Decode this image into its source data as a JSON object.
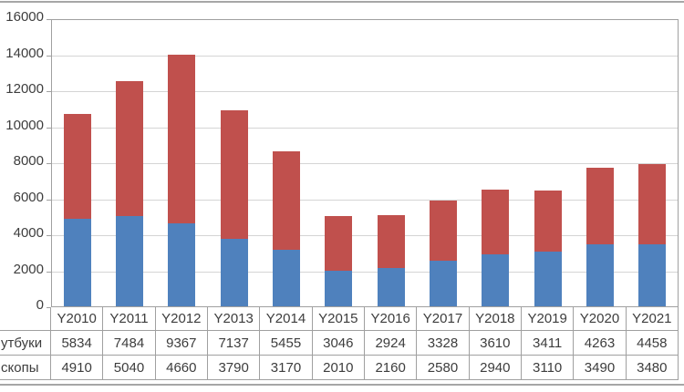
{
  "chart_data": {
    "type": "bar",
    "stacked": true,
    "title": "",
    "xlabel": "",
    "ylabel": "",
    "categories": [
      "Y2010",
      "Y2011",
      "Y2012",
      "Y2013",
      "Y2014",
      "Y2015",
      "Y2016",
      "Y2017",
      "Y2018",
      "Y2019",
      "Y2020",
      "Y2021"
    ],
    "series": [
      {
        "name": "утбуки",
        "color": "#C0504D",
        "stack_position": "top",
        "values": [
          5834,
          7484,
          9367,
          7137,
          5455,
          3046,
          2924,
          3328,
          3610,
          3411,
          4263,
          4458
        ]
      },
      {
        "name": "скопы",
        "color": "#4F81BD",
        "stack_position": "bottom",
        "values": [
          4910,
          5040,
          4660,
          3790,
          3170,
          2010,
          2160,
          2580,
          2940,
          3110,
          3490,
          3480
        ]
      }
    ],
    "ylim": [
      0,
      16000
    ],
    "yticks": [
      0,
      2000,
      4000,
      6000,
      8000,
      10000,
      12000,
      14000,
      16000
    ],
    "grid": true,
    "legend_position": "none",
    "data_table_below_chart": true
  },
  "table": {
    "corner_label": "",
    "row_order": [
      "утбуки",
      "скопы"
    ]
  },
  "colors": {
    "bar_top": "#C0504D",
    "bar_bottom": "#4F81BD",
    "grid_line": "#d4d4d4",
    "axis_and_table_border": "#a0a0a0",
    "frame_line": "#a6a6a6",
    "text": "#3d3d3d",
    "background": "#ffffff"
  }
}
